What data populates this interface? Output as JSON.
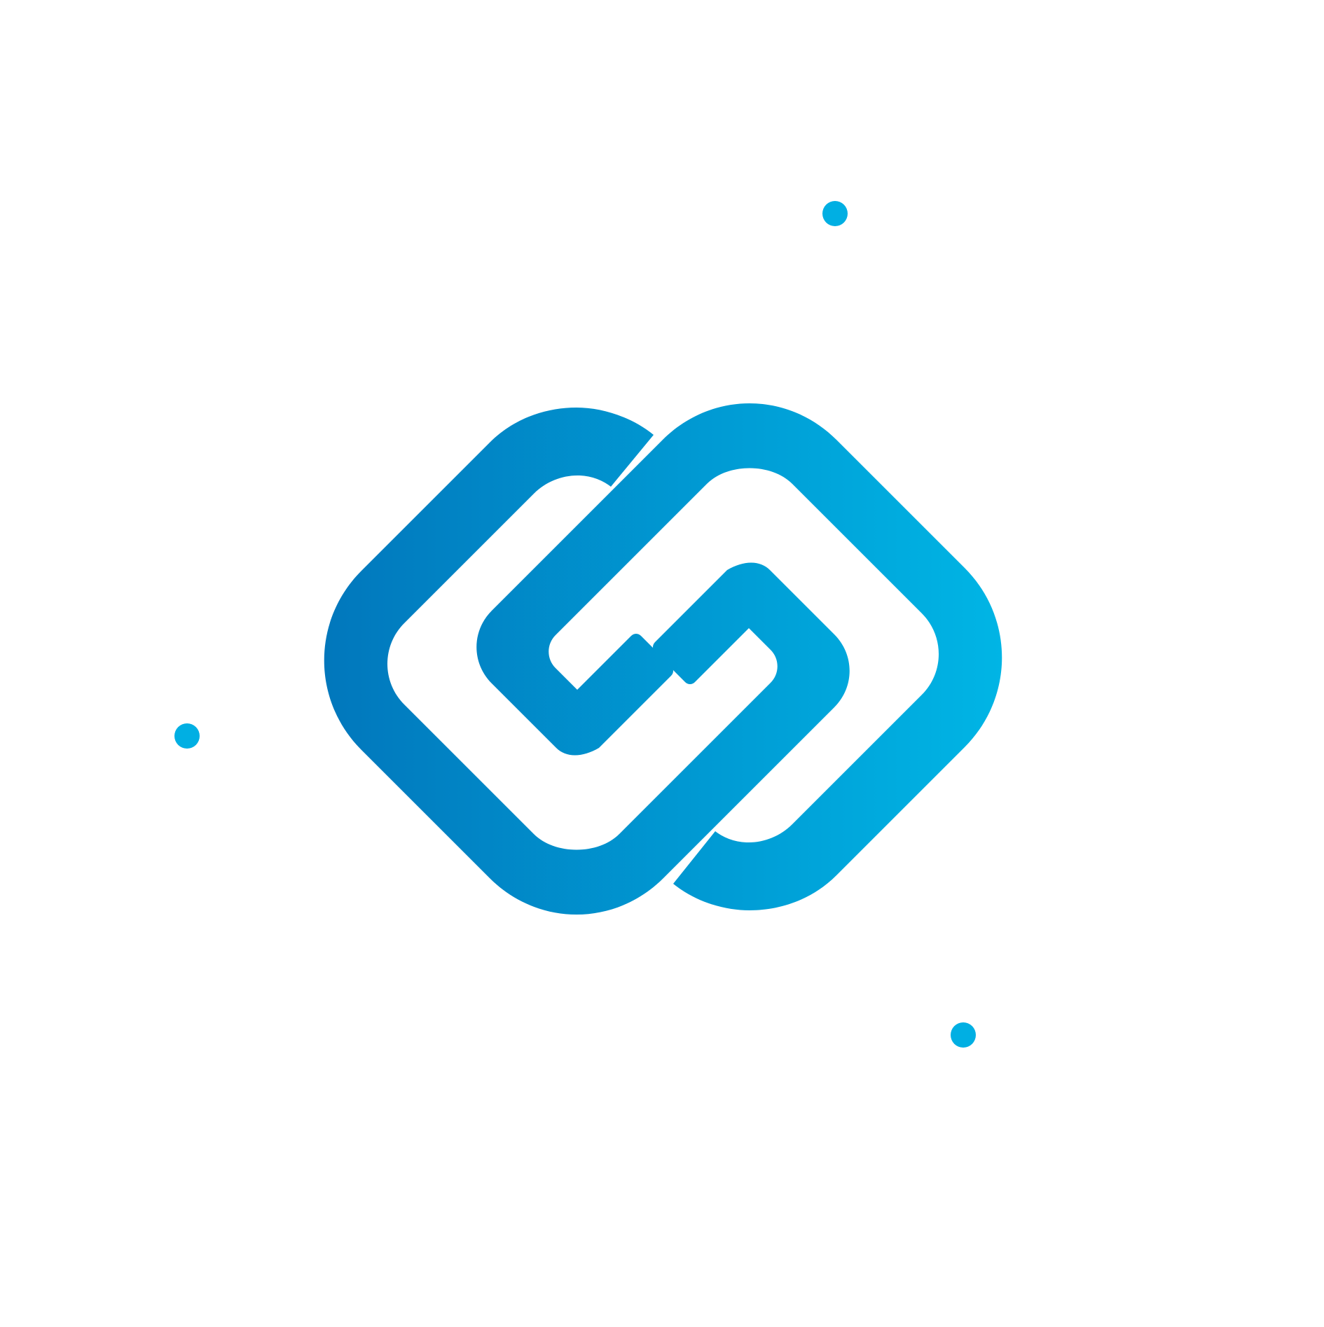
{
  "colors": {
    "background": "#ffffff",
    "gradient_start": "#0177BC",
    "gradient_end": "#00B5E5",
    "dot": "#00AFE3"
  },
  "logo": {
    "icon": "interlocking-chain-link-logo-icon"
  },
  "decorations": {
    "dots": 3,
    "dot_icon": "circle-dot-icon"
  }
}
